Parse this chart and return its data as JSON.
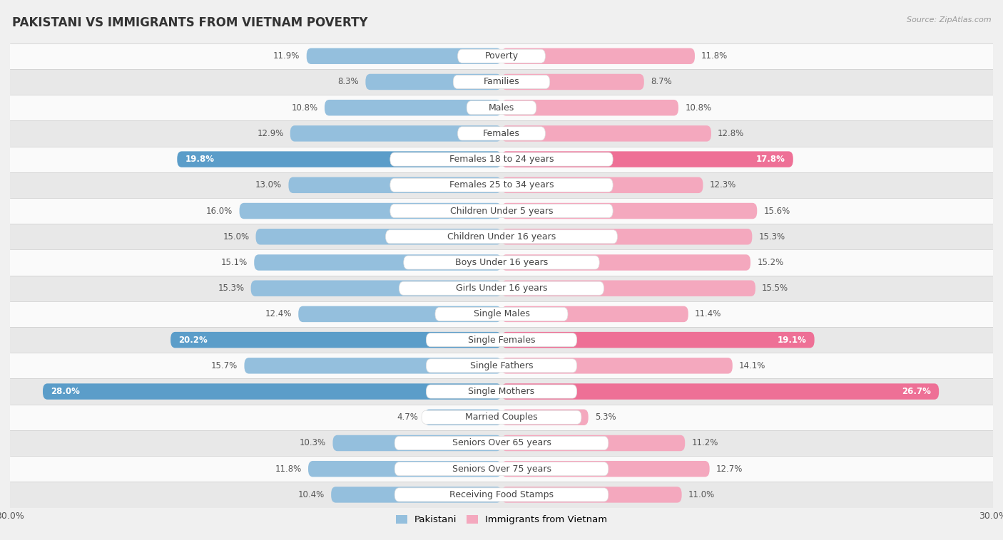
{
  "title": "PAKISTANI VS IMMIGRANTS FROM VIETNAM POVERTY",
  "source": "Source: ZipAtlas.com",
  "categories": [
    "Poverty",
    "Families",
    "Males",
    "Females",
    "Females 18 to 24 years",
    "Females 25 to 34 years",
    "Children Under 5 years",
    "Children Under 16 years",
    "Boys Under 16 years",
    "Girls Under 16 years",
    "Single Males",
    "Single Females",
    "Single Fathers",
    "Single Mothers",
    "Married Couples",
    "Seniors Over 65 years",
    "Seniors Over 75 years",
    "Receiving Food Stamps"
  ],
  "pakistani": [
    11.9,
    8.3,
    10.8,
    12.9,
    19.8,
    13.0,
    16.0,
    15.0,
    15.1,
    15.3,
    12.4,
    20.2,
    15.7,
    28.0,
    4.7,
    10.3,
    11.8,
    10.4
  ],
  "vietnam": [
    11.8,
    8.7,
    10.8,
    12.8,
    17.8,
    12.3,
    15.6,
    15.3,
    15.2,
    15.5,
    11.4,
    19.1,
    14.1,
    26.7,
    5.3,
    11.2,
    12.7,
    11.0
  ],
  "pakistani_color": "#94bfdd",
  "vietnam_color": "#f4a8be",
  "pakistani_highlight": "#5b9dc9",
  "vietnam_highlight": "#ee7096",
  "highlight_rows": [
    4,
    11,
    13
  ],
  "xlim": 30.0,
  "bg_color": "#f0f0f0",
  "row_bg_light": "#fafafa",
  "row_bg_dark": "#e8e8e8",
  "bar_height": 0.62,
  "label_fontsize": 9,
  "value_fontsize": 8.5,
  "title_fontsize": 12
}
